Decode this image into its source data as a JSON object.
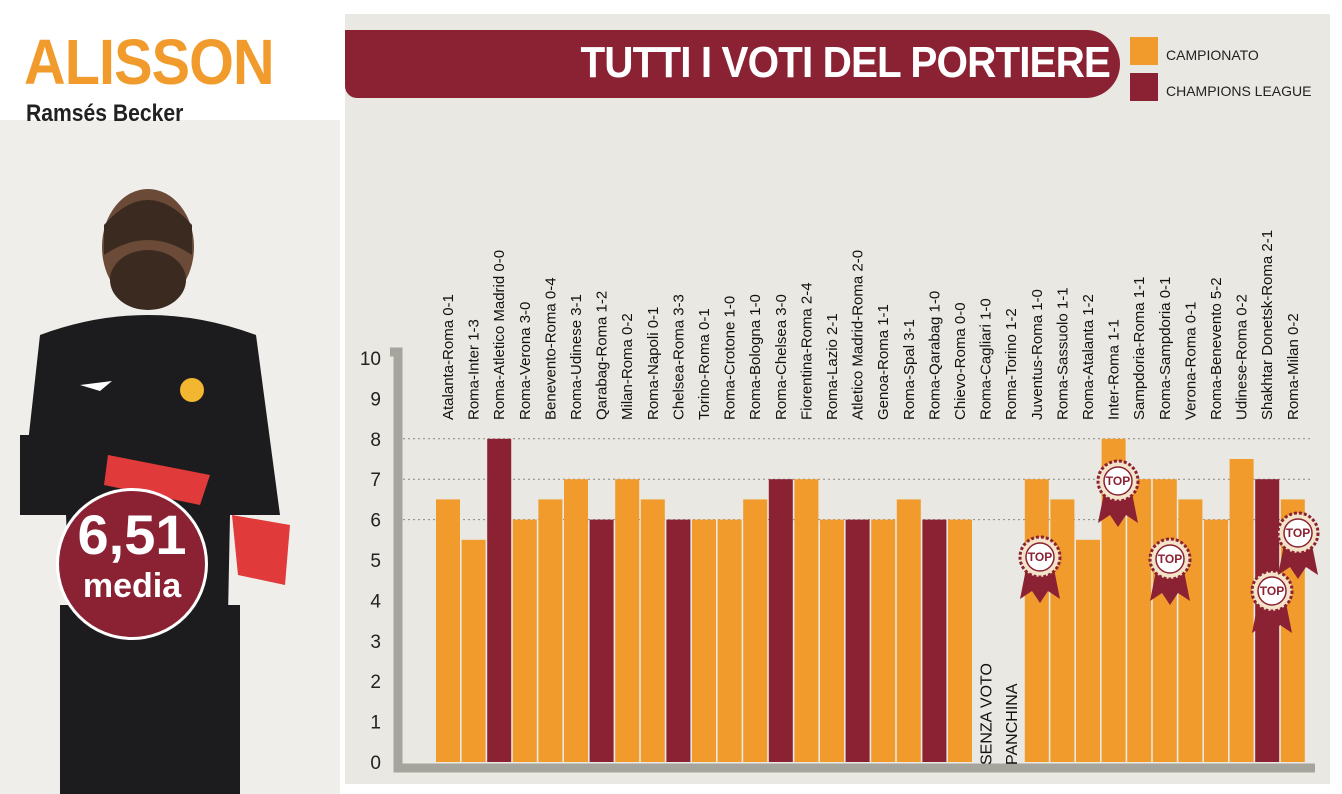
{
  "player": {
    "name": "ALISSON",
    "full_name": "Ramsés Becker",
    "average_value": "6,51",
    "average_label": "media"
  },
  "colors": {
    "campionato": "#f29b2d",
    "champions": "#8b2233",
    "background": "#e9e8e2"
  },
  "legend": [
    {
      "label": "CAMPIONATO",
      "color": "#f29b2d"
    },
    {
      "label": "CHAMPIONS LEAGUE",
      "color": "#8b2233"
    }
  ],
  "chart_data": {
    "type": "bar",
    "title": "TUTTI I VOTI DEL PORTIERE",
    "ylim": [
      0,
      10
    ],
    "yticks": [
      0,
      1,
      2,
      3,
      4,
      5,
      6,
      7,
      8,
      9,
      10
    ],
    "grid": "dotted lines at 6, 7, 8",
    "legend_placement": "top-right",
    "bars": [
      {
        "match": "Atalanta-Roma 0-1",
        "value": 6.5,
        "competition": "campionato"
      },
      {
        "match": "Roma-Inter 1-3",
        "value": 5.5,
        "competition": "campionato"
      },
      {
        "match": "Roma-Atletico Madrid 0-0",
        "value": 8,
        "competition": "champions"
      },
      {
        "match": "Roma-Verona 3-0",
        "value": 6,
        "competition": "campionato"
      },
      {
        "match": "Benevento-Roma 0-4",
        "value": 6.5,
        "competition": "campionato"
      },
      {
        "match": "Roma-Udinese 3-1",
        "value": 7,
        "competition": "campionato"
      },
      {
        "match": "Qarabag-Roma 1-2",
        "value": 6,
        "competition": "champions"
      },
      {
        "match": "Milan-Roma 0-2",
        "value": 7,
        "competition": "campionato"
      },
      {
        "match": "Roma-Napoli 0-1",
        "value": 6.5,
        "competition": "campionato"
      },
      {
        "match": "Chelsea-Roma 3-3",
        "value": 6,
        "competition": "champions"
      },
      {
        "match": "Torino-Roma 0-1",
        "value": 6,
        "competition": "campionato"
      },
      {
        "match": "Roma-Crotone 1-0",
        "value": 6,
        "competition": "campionato"
      },
      {
        "match": "Roma-Bologna 1-0",
        "value": 6.5,
        "competition": "campionato"
      },
      {
        "match": "Roma-Chelsea 3-0",
        "value": 7,
        "competition": "champions"
      },
      {
        "match": "Fiorentina-Roma 2-4",
        "value": 7,
        "competition": "campionato"
      },
      {
        "match": "Roma-Lazio 2-1",
        "value": 6,
        "competition": "campionato"
      },
      {
        "match": "Atletico Madrid-Roma 2-0",
        "value": 6,
        "competition": "champions"
      },
      {
        "match": "Genoa-Roma 1-1",
        "value": 6,
        "competition": "campionato"
      },
      {
        "match": "Roma-Spal 3-1",
        "value": 6.5,
        "competition": "campionato"
      },
      {
        "match": "Roma-Qarabag 1-0",
        "value": 6,
        "competition": "champions"
      },
      {
        "match": "Chievo-Roma 0-0",
        "value": 6,
        "competition": "campionato"
      },
      {
        "match": "Roma-Cagliari 1-0",
        "value": null,
        "competition": "campionato",
        "note": "SENZA VOTO"
      },
      {
        "match": "Roma-Torino 1-2",
        "value": null,
        "competition": "campionato",
        "note": "PANCHINA"
      },
      {
        "match": "Juventus-Roma 1-0",
        "value": 7,
        "competition": "campionato",
        "top": true
      },
      {
        "match": "Roma-Sassuolo 1-1",
        "value": 6.5,
        "competition": "campionato"
      },
      {
        "match": "Roma-Atalanta 1-2",
        "value": 5.5,
        "competition": "campionato"
      },
      {
        "match": "Inter-Roma 1-1",
        "value": 8,
        "competition": "campionato",
        "top": true
      },
      {
        "match": "Sampdoria-Roma 1-1",
        "value": 7,
        "competition": "campionato"
      },
      {
        "match": "Roma-Sampdoria 0-1",
        "value": 7,
        "competition": "campionato",
        "top": true
      },
      {
        "match": "Verona-Roma 0-1",
        "value": 6.5,
        "competition": "campionato"
      },
      {
        "match": "Roma-Benevento 5-2",
        "value": 6,
        "competition": "campionato"
      },
      {
        "match": "Udinese-Roma 0-2",
        "value": 7.5,
        "competition": "campionato"
      },
      {
        "match": "Shakhtar Donetsk-Roma 2-1",
        "value": 7,
        "competition": "champions",
        "top": true
      },
      {
        "match": "Roma-Milan 0-2",
        "value": 6.5,
        "competition": "campionato",
        "top": true
      }
    ],
    "badge_label": "TOP"
  }
}
